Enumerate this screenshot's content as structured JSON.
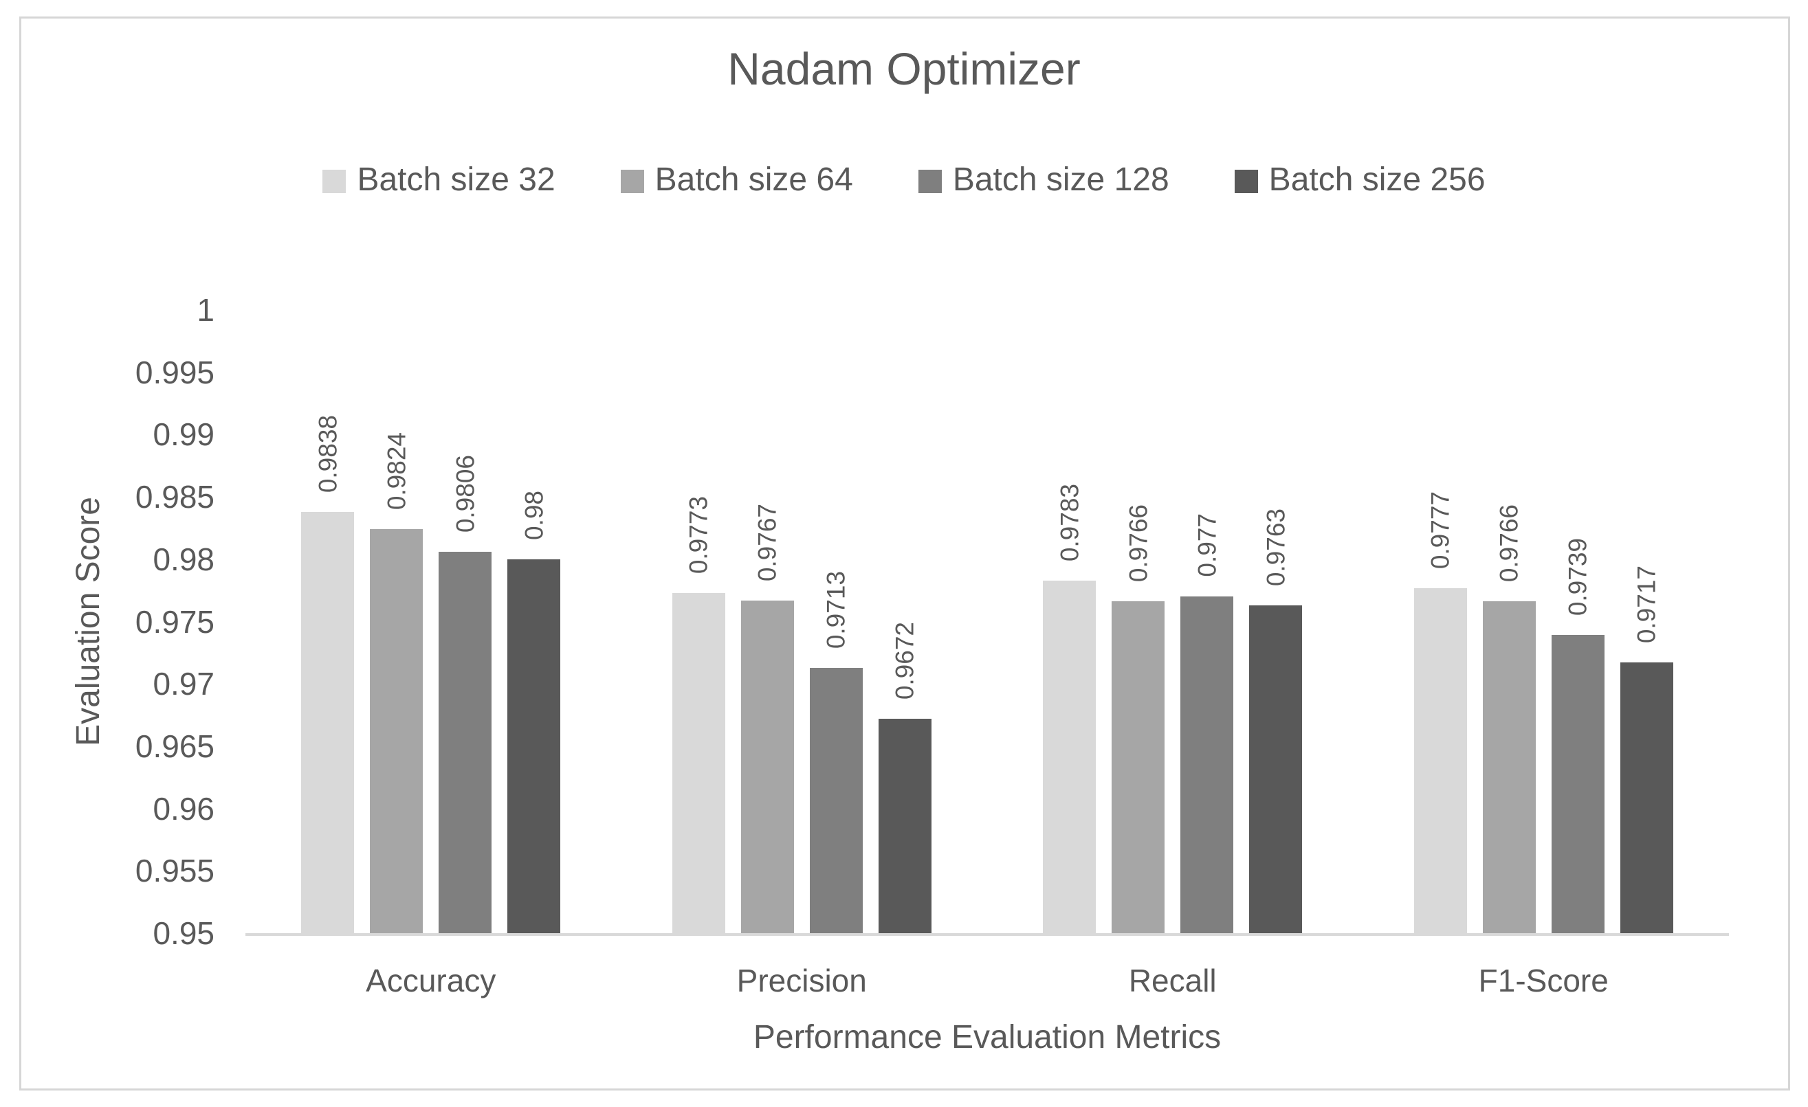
{
  "title": "Nadam Optimizer",
  "colors": {
    "text": "#595959",
    "axis_line": "#d9d9d9",
    "frame_border": "#d6d6d6",
    "series": [
      "#d9d9d9",
      "#a6a6a6",
      "#7f7f7f",
      "#595959"
    ]
  },
  "chart_data": {
    "type": "bar",
    "title": "Nadam Optimizer",
    "xlabel": "Performance Evaluation Metrics",
    "ylabel": "Evaluation Score",
    "ylim": [
      0.95,
      1.0
    ],
    "ytick_step": 0.005,
    "yticks": [
      "1",
      "0.995",
      "0.99",
      "0.985",
      "0.98",
      "0.975",
      "0.97",
      "0.965",
      "0.96",
      "0.955",
      "0.95"
    ],
    "grid": false,
    "legend_position": "top",
    "categories": [
      "Accuracy",
      "Precision",
      "Recall",
      "F1-Score"
    ],
    "series": [
      {
        "name": "Batch size 32",
        "color": "#d9d9d9",
        "values": [
          0.9838,
          0.9773,
          0.9783,
          0.9777
        ],
        "labels": [
          "0.9838",
          "0.9773",
          "0.9783",
          "0.9777"
        ]
      },
      {
        "name": "Batch size 64",
        "color": "#a6a6a6",
        "values": [
          0.9824,
          0.9767,
          0.9766,
          0.9766
        ],
        "labels": [
          "0.9824",
          "0.9767",
          "0.9766",
          "0.9766"
        ]
      },
      {
        "name": "Batch size 128",
        "color": "#7f7f7f",
        "values": [
          0.9806,
          0.9713,
          0.977,
          0.9739
        ],
        "labels": [
          "0.9806",
          "0.9713",
          "0.977",
          "0.9739"
        ]
      },
      {
        "name": "Batch size 256",
        "color": "#595959",
        "values": [
          0.98,
          0.9672,
          0.9763,
          0.9717
        ],
        "labels": [
          "0.98",
          "0.9672",
          "0.9763",
          "0.9717"
        ]
      }
    ]
  }
}
